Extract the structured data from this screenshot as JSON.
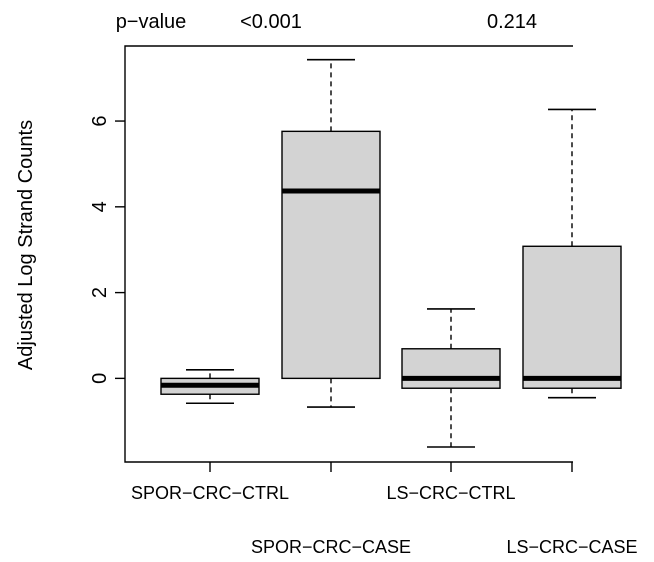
{
  "chart_data": {
    "type": "box",
    "title": "",
    "xlabel": "",
    "ylabel": "Adjusted Log Strand Counts",
    "ylim": [
      -1.95,
      7.75
    ],
    "yticks": [
      0,
      2,
      4,
      6
    ],
    "grid": false,
    "legend": "none",
    "colors": {
      "box_fill": "#d3d3d3",
      "stroke": "#000000",
      "background": "#ffffff"
    },
    "pvalue_header": "p−value",
    "pvalues": [
      {
        "label": "<0.001",
        "between": [
          "SPOR−CRC−CTRL",
          "SPOR−CRC−CASE"
        ]
      },
      {
        "label": "0.214",
        "between": [
          "LS−CRC−CTRL",
          "LS−CRC−CASE"
        ]
      }
    ],
    "categories": [
      "SPOR−CRC−CTRL",
      "SPOR−CRC−CASE",
      "LS−CRC−CTRL",
      "LS−CRC−CASE"
    ],
    "boxes": [
      {
        "name": "SPOR−CRC−CTRL",
        "whisker_low": -0.58,
        "q1": -0.37,
        "median": -0.16,
        "q3": 0.0,
        "whisker_high": 0.2
      },
      {
        "name": "SPOR−CRC−CASE",
        "whisker_low": -0.67,
        "q1": 0.0,
        "median": 4.37,
        "q3": 5.76,
        "whisker_high": 7.43
      },
      {
        "name": "LS−CRC−CTRL",
        "whisker_low": -1.6,
        "q1": -0.23,
        "median": 0.0,
        "q3": 0.69,
        "whisker_high": 1.62
      },
      {
        "name": "LS−CRC−CASE",
        "whisker_low": -0.45,
        "q1": -0.23,
        "median": 0.0,
        "q3": 3.08,
        "whisker_high": 6.27
      }
    ]
  }
}
